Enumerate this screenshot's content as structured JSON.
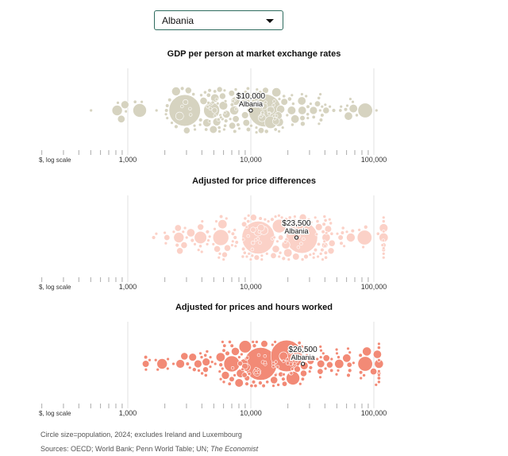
{
  "selector": {
    "selected": "Albania",
    "icon": "caret-down-icon"
  },
  "chart_data": [
    {
      "type": "scatter",
      "title": "GDP per person at market exchange rates",
      "xlabel": "$, log scale",
      "xscale": "log",
      "xlim": [
        100,
        100000
      ],
      "xticks": [
        1000,
        10000,
        100000
      ],
      "xtick_labels": [
        "1,000",
        "10,000",
        "100,000"
      ],
      "color": "#d6d3c0",
      "highlight": {
        "name": "Albania",
        "value": 10000,
        "label": "$10,000"
      },
      "range": [
        420,
        105000
      ],
      "spread": 0.55,
      "clusters": [
        {
          "value": 2900,
          "population": 1300
        },
        {
          "value": 13000,
          "population": 1400
        },
        {
          "value": 4800,
          "population": 330
        },
        {
          "value": 1250,
          "population": 240
        },
        {
          "value": 85000,
          "population": 280
        },
        {
          "value": 14500,
          "population": 200
        },
        {
          "value": 820,
          "population": 140
        }
      ]
    },
    {
      "type": "scatter",
      "title": "Adjusted for price differences",
      "xlabel": "$, log scale",
      "xscale": "log",
      "xlim": [
        100,
        100000
      ],
      "xticks": [
        1000,
        10000,
        100000
      ],
      "xtick_labels": [
        "1,000",
        "10,000",
        "100,000"
      ],
      "color": "#fbd1c7",
      "highlight": {
        "name": "Albania",
        "value": 23500,
        "label": "$23,500"
      },
      "range": [
        1200,
        120000
      ],
      "spread": 0.7,
      "clusters": [
        {
          "value": 11500,
          "population": 1400
        },
        {
          "value": 26000,
          "population": 1300
        },
        {
          "value": 5700,
          "population": 330
        },
        {
          "value": 17000,
          "population": 240
        },
        {
          "value": 84000,
          "population": 280
        },
        {
          "value": 3900,
          "population": 200
        },
        {
          "value": 2600,
          "population": 140
        }
      ]
    },
    {
      "type": "scatter",
      "title": "Adjusted for prices and hours worked",
      "xlabel": "$, log scale",
      "xscale": "log",
      "xlim": [
        100,
        100000
      ],
      "xticks": [
        1000,
        10000,
        100000
      ],
      "xtick_labels": [
        "1,000",
        "10,000",
        "100,000"
      ],
      "color": "#f28a76",
      "highlight": {
        "name": "Albania",
        "value": 26500,
        "label": "$26,500"
      },
      "range": [
        1400,
        110000
      ],
      "spread": 0.75,
      "clusters": [
        {
          "value": 12000,
          "population": 1400
        },
        {
          "value": 19500,
          "population": 1300
        },
        {
          "value": 7000,
          "population": 330
        },
        {
          "value": 22000,
          "population": 240
        },
        {
          "value": 85000,
          "population": 280
        },
        {
          "value": 9000,
          "population": 200
        },
        {
          "value": 1900,
          "population": 140
        }
      ]
    }
  ],
  "footer": {
    "note": "Circle size=population, 2024; excludes Ireland and Luxembourg",
    "sources_prefix": "Sources: OECD; World Bank; Penn World Table; UN; ",
    "sources_italic": "The Economist"
  }
}
